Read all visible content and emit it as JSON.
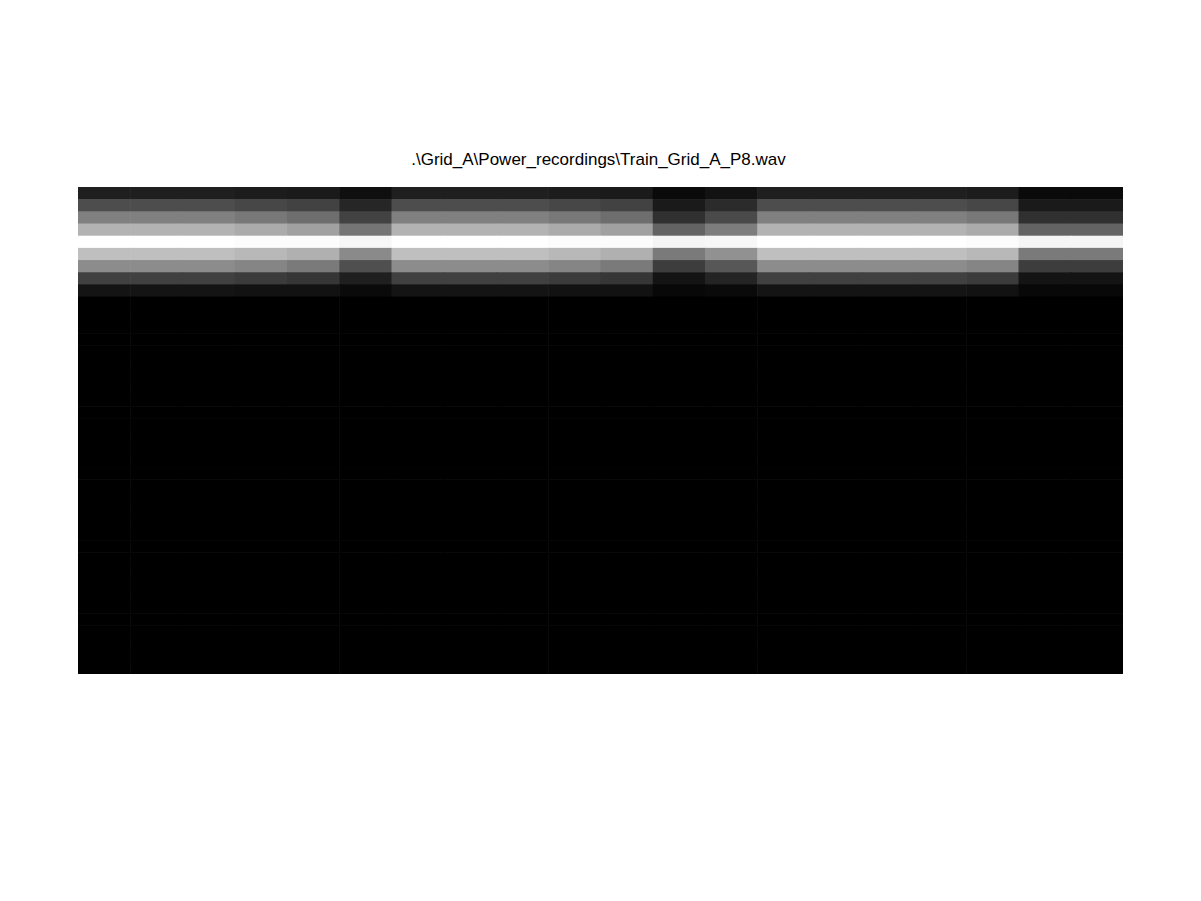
{
  "chart_data": {
    "type": "heatmap",
    "title": ".\\Grid_A\\Power_recordings\\Train_Grid_A_P8.wav",
    "tick_labels": false,
    "grid": false,
    "zlim": [
      0,
      1
    ],
    "cells": [
      [
        0.12,
        0.12,
        0.12,
        0.11,
        0.1,
        0.06,
        0.12,
        0.12,
        0.12,
        0.11,
        0.1,
        0.04,
        0.07,
        0.12,
        0.12,
        0.12,
        0.12,
        0.11,
        0.04,
        0.04
      ],
      [
        0.3,
        0.3,
        0.3,
        0.28,
        0.26,
        0.15,
        0.3,
        0.3,
        0.3,
        0.28,
        0.26,
        0.1,
        0.17,
        0.3,
        0.3,
        0.3,
        0.3,
        0.28,
        0.1,
        0.1
      ],
      [
        0.5,
        0.5,
        0.5,
        0.47,
        0.43,
        0.26,
        0.5,
        0.5,
        0.5,
        0.47,
        0.43,
        0.19,
        0.29,
        0.5,
        0.5,
        0.5,
        0.5,
        0.47,
        0.19,
        0.19
      ],
      [
        0.7,
        0.7,
        0.7,
        0.67,
        0.63,
        0.46,
        0.7,
        0.7,
        0.7,
        0.67,
        0.63,
        0.39,
        0.49,
        0.7,
        0.7,
        0.7,
        0.7,
        0.67,
        0.39,
        0.39
      ],
      [
        1,
        1,
        1,
        0.99,
        0.99,
        0.97,
        1,
        1,
        1,
        0.99,
        0.99,
        0.96,
        0.97,
        1,
        1,
        1,
        1,
        0.99,
        0.96,
        0.96
      ],
      [
        0.75,
        0.75,
        0.75,
        0.72,
        0.69,
        0.54,
        0.75,
        0.75,
        0.75,
        0.72,
        0.69,
        0.48,
        0.57,
        0.75,
        0.75,
        0.75,
        0.75,
        0.72,
        0.48,
        0.48
      ],
      [
        0.55,
        0.55,
        0.55,
        0.52,
        0.48,
        0.31,
        0.55,
        0.55,
        0.55,
        0.52,
        0.48,
        0.24,
        0.34,
        0.55,
        0.55,
        0.55,
        0.55,
        0.52,
        0.24,
        0.24
      ],
      [
        0.25,
        0.25,
        0.25,
        0.23,
        0.21,
        0.12,
        0.25,
        0.25,
        0.25,
        0.23,
        0.21,
        0.08,
        0.14,
        0.25,
        0.25,
        0.25,
        0.25,
        0.23,
        0.08,
        0.08
      ],
      [
        0.08,
        0.08,
        0.08,
        0.07,
        0.07,
        0.04,
        0.08,
        0.08,
        0.08,
        0.07,
        0.07,
        0.03,
        0.04,
        0.08,
        0.08,
        0.08,
        0.08,
        0.07,
        0.03,
        0.03
      ],
      [
        0,
        0,
        0,
        0,
        0,
        0,
        0,
        0,
        0,
        0,
        0,
        0,
        0,
        0,
        0,
        0,
        0,
        0,
        0,
        0
      ],
      [
        0,
        0,
        0,
        0,
        0,
        0,
        0,
        0,
        0,
        0,
        0,
        0,
        0,
        0,
        0,
        0,
        0,
        0,
        0,
        0
      ],
      [
        0,
        0,
        0,
        0,
        0,
        0,
        0,
        0,
        0,
        0,
        0,
        0,
        0,
        0,
        0,
        0,
        0,
        0,
        0,
        0
      ],
      [
        0,
        0,
        0,
        0,
        0,
        0,
        0,
        0,
        0,
        0,
        0,
        0,
        0,
        0,
        0,
        0,
        0,
        0,
        0,
        0
      ],
      [
        0,
        0,
        0,
        0,
        0,
        0,
        0,
        0,
        0,
        0,
        0,
        0,
        0,
        0,
        0,
        0,
        0,
        0,
        0,
        0
      ],
      [
        0,
        0,
        0,
        0,
        0,
        0,
        0,
        0,
        0,
        0,
        0,
        0,
        0,
        0,
        0,
        0,
        0,
        0,
        0,
        0
      ],
      [
        0,
        0,
        0,
        0,
        0,
        0,
        0,
        0,
        0,
        0,
        0,
        0,
        0,
        0,
        0,
        0,
        0,
        0,
        0,
        0
      ],
      [
        0,
        0,
        0,
        0,
        0,
        0,
        0,
        0,
        0,
        0,
        0,
        0,
        0,
        0,
        0,
        0,
        0,
        0,
        0,
        0
      ],
      [
        0,
        0,
        0,
        0,
        0,
        0,
        0,
        0,
        0,
        0,
        0,
        0,
        0,
        0,
        0,
        0,
        0,
        0,
        0,
        0
      ],
      [
        0,
        0,
        0,
        0,
        0,
        0,
        0,
        0,
        0,
        0,
        0,
        0,
        0,
        0,
        0,
        0,
        0,
        0,
        0,
        0
      ],
      [
        0,
        0,
        0,
        0,
        0,
        0,
        0,
        0,
        0,
        0,
        0,
        0,
        0,
        0,
        0,
        0,
        0,
        0,
        0,
        0
      ],
      [
        0,
        0,
        0,
        0,
        0,
        0,
        0,
        0,
        0,
        0,
        0,
        0,
        0,
        0,
        0,
        0,
        0,
        0,
        0,
        0
      ],
      [
        0,
        0,
        0,
        0,
        0,
        0,
        0,
        0,
        0,
        0,
        0,
        0,
        0,
        0,
        0,
        0,
        0,
        0,
        0,
        0
      ],
      [
        0,
        0,
        0,
        0,
        0,
        0,
        0,
        0,
        0,
        0,
        0,
        0,
        0,
        0,
        0,
        0,
        0,
        0,
        0,
        0
      ],
      [
        0,
        0,
        0,
        0,
        0,
        0,
        0,
        0,
        0,
        0,
        0,
        0,
        0,
        0,
        0,
        0,
        0,
        0,
        0,
        0
      ],
      [
        0,
        0,
        0,
        0,
        0,
        0,
        0,
        0,
        0,
        0,
        0,
        0,
        0,
        0,
        0,
        0,
        0,
        0,
        0,
        0
      ],
      [
        0,
        0,
        0,
        0,
        0,
        0,
        0,
        0,
        0,
        0,
        0,
        0,
        0,
        0,
        0,
        0,
        0,
        0,
        0,
        0
      ],
      [
        0,
        0,
        0,
        0,
        0,
        0,
        0,
        0,
        0,
        0,
        0,
        0,
        0,
        0,
        0,
        0,
        0,
        0,
        0,
        0
      ],
      [
        0,
        0,
        0,
        0,
        0,
        0,
        0,
        0,
        0,
        0,
        0,
        0,
        0,
        0,
        0,
        0,
        0,
        0,
        0,
        0
      ],
      [
        0,
        0,
        0,
        0,
        0,
        0,
        0,
        0,
        0,
        0,
        0,
        0,
        0,
        0,
        0,
        0,
        0,
        0,
        0,
        0
      ],
      [
        0,
        0,
        0,
        0,
        0,
        0,
        0,
        0,
        0,
        0,
        0,
        0,
        0,
        0,
        0,
        0,
        0,
        0,
        0,
        0
      ],
      [
        0,
        0,
        0,
        0,
        0,
        0,
        0,
        0,
        0,
        0,
        0,
        0,
        0,
        0,
        0,
        0,
        0,
        0,
        0,
        0
      ],
      [
        0,
        0,
        0,
        0,
        0,
        0,
        0,
        0,
        0,
        0,
        0,
        0,
        0,
        0,
        0,
        0,
        0,
        0,
        0,
        0
      ],
      [
        0,
        0,
        0,
        0,
        0,
        0,
        0,
        0,
        0,
        0,
        0,
        0,
        0,
        0,
        0,
        0,
        0,
        0,
        0,
        0
      ],
      [
        0,
        0,
        0,
        0,
        0,
        0,
        0,
        0,
        0,
        0,
        0,
        0,
        0,
        0,
        0,
        0,
        0,
        0,
        0,
        0
      ],
      [
        0,
        0,
        0,
        0,
        0,
        0,
        0,
        0,
        0,
        0,
        0,
        0,
        0,
        0,
        0,
        0,
        0,
        0,
        0,
        0
      ],
      [
        0,
        0,
        0,
        0,
        0,
        0,
        0,
        0,
        0,
        0,
        0,
        0,
        0,
        0,
        0,
        0,
        0,
        0,
        0,
        0
      ],
      [
        0,
        0,
        0,
        0,
        0,
        0,
        0,
        0,
        0,
        0,
        0,
        0,
        0,
        0,
        0,
        0,
        0,
        0,
        0,
        0
      ],
      [
        0,
        0,
        0,
        0,
        0,
        0,
        0,
        0,
        0,
        0,
        0,
        0,
        0,
        0,
        0,
        0,
        0,
        0,
        0,
        0
      ],
      [
        0,
        0,
        0,
        0,
        0,
        0,
        0,
        0,
        0,
        0,
        0,
        0,
        0,
        0,
        0,
        0,
        0,
        0,
        0,
        0
      ],
      [
        0,
        0,
        0,
        0,
        0,
        0,
        0,
        0,
        0,
        0,
        0,
        0,
        0,
        0,
        0,
        0,
        0,
        0,
        0,
        0
      ]
    ]
  }
}
